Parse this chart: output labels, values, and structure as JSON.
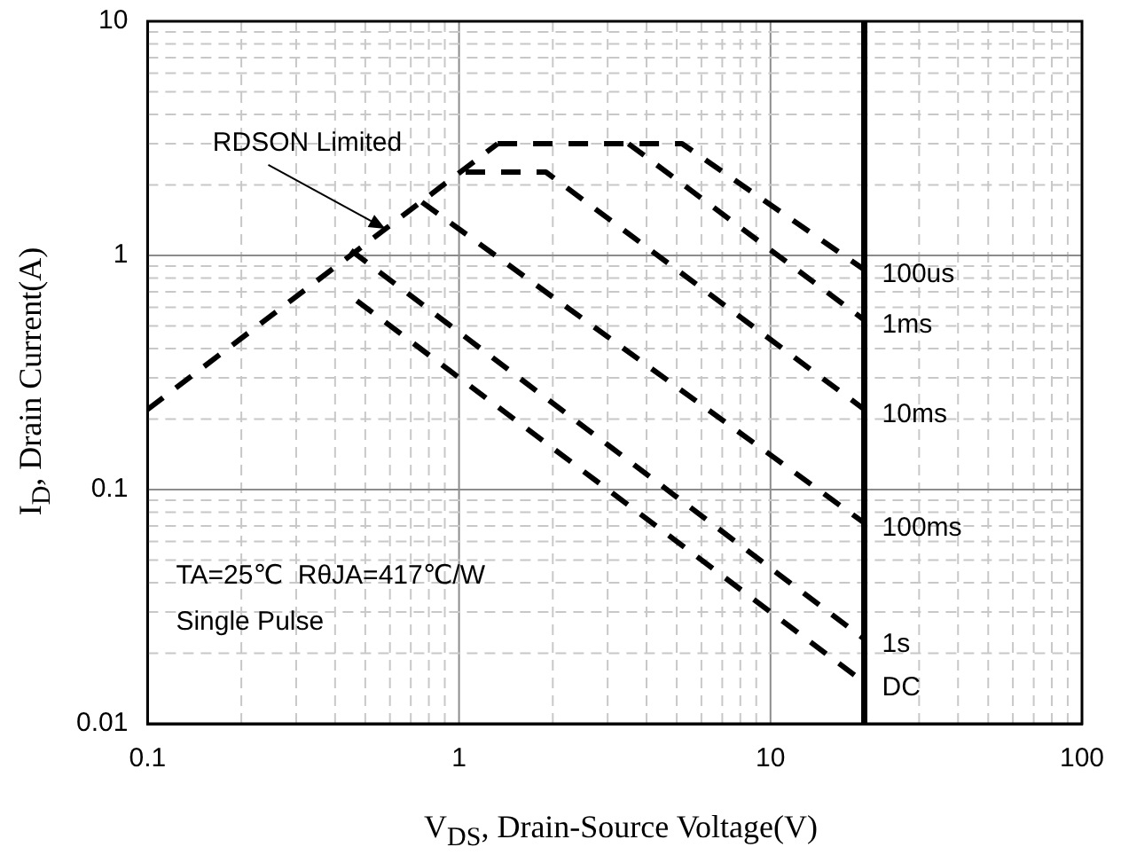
{
  "chart_data": {
    "type": "line",
    "xlabel": "V$_{DS}$, Drain-Source Voltage(V)",
    "ylabel": "I$_{D}$, Drain Current(A)",
    "log": "xy",
    "xlim": [
      0.1,
      100
    ],
    "ylim": [
      0.01,
      10
    ],
    "xticks": [
      0.1,
      {
        "value": 0.2,
        "label": null
      },
      {
        "value": 0.3,
        "label": null
      },
      {
        "value": 0.4,
        "label": null
      },
      {
        "value": 0.5,
        "label": null
      },
      {
        "value": 0.6,
        "label": null
      },
      {
        "value": 0.7,
        "label": null
      },
      {
        "value": 0.8,
        "label": null
      },
      {
        "value": 0.9,
        "label": null
      },
      1,
      {
        "value": 2,
        "label": null
      },
      {
        "value": 3,
        "label": null
      },
      {
        "value": 4,
        "label": null
      },
      {
        "value": 5,
        "label": null
      },
      {
        "value": 6,
        "label": null
      },
      {
        "value": 7,
        "label": null
      },
      {
        "value": 8,
        "label": null
      },
      {
        "value": 9,
        "label": null
      },
      10,
      {
        "value": 20,
        "label": null
      },
      {
        "value": 30,
        "label": null
      },
      {
        "value": 40,
        "label": null
      },
      {
        "value": 50,
        "label": null
      },
      {
        "value": 60,
        "label": null
      },
      {
        "value": 70,
        "label": null
      },
      {
        "value": 80,
        "label": null
      },
      {
        "value": 90,
        "label": null
      },
      100
    ],
    "yticks": [
      0.01,
      {
        "value": 0.02,
        "label": null
      },
      {
        "value": 0.03,
        "label": null
      },
      {
        "value": 0.04,
        "label": null
      },
      {
        "value": 0.05,
        "label": null
      },
      {
        "value": 0.06,
        "label": null
      },
      {
        "value": 0.07,
        "label": null
      },
      {
        "value": 0.08,
        "label": null
      },
      {
        "value": 0.09,
        "label": null
      },
      0.1,
      {
        "value": 0.2,
        "label": null
      },
      {
        "value": 0.3,
        "label": null
      },
      {
        "value": 0.4,
        "label": null
      },
      {
        "value": 0.5,
        "label": null
      },
      {
        "value": 0.6,
        "label": null
      },
      {
        "value": 0.7,
        "label": null
      },
      {
        "value": 0.8,
        "label": null
      },
      {
        "value": 0.9,
        "label": null
      },
      1,
      {
        "value": 2,
        "label": null
      },
      {
        "value": 3,
        "label": null
      },
      {
        "value": 4,
        "label": null
      },
      {
        "value": 5,
        "label": null
      },
      {
        "value": 6,
        "label": null
      },
      {
        "value": 7,
        "label": null
      },
      {
        "value": 8,
        "label": null
      },
      {
        "value": 9,
        "label": null
      },
      10
    ],
    "grid": true,
    "legend": false,
    "line_style": "dashed",
    "series": [
      {
        "color": "#000000",
        "x": [
          0.1,
          1.33
        ],
        "values": [
          0.22,
          3.0
        ]
      },
      {
        "name": "100us",
        "color": "#000000",
        "x": [
          1.33,
          5.2,
          20
        ],
        "values": [
          3.0,
          3.0,
          0.87
        ]
      },
      {
        "name": "1ms",
        "color": "#000000",
        "x": [
          3.5,
          20
        ],
        "values": [
          3.0,
          0.53
        ]
      },
      {
        "name": "10ms",
        "color": "#000000",
        "x": [
          1.05,
          1.9,
          20
        ],
        "values": [
          2.27,
          2.27,
          0.22
        ]
      },
      {
        "name": "100ms",
        "color": "#000000",
        "x": [
          0.76,
          20
        ],
        "values": [
          1.69,
          0.072
        ]
      },
      {
        "name": "1s",
        "color": "#000000",
        "x": [
          0.45,
          20
        ],
        "values": [
          1.05,
          0.023
        ]
      },
      {
        "name": "DC",
        "color": "#000000",
        "x": [
          0.47,
          20
        ],
        "values": [
          0.64,
          0.015
        ]
      }
    ],
    "ref_lines": [
      {
        "axis": "x",
        "value": 20,
        "color": "#000000",
        "line_style": "solid"
      }
    ],
    "annotations": [
      {
        "text": "RDSON Limited",
        "x": 0.58,
        "y": 1.3
      },
      "TA=25℃  RθJA=417℃/W",
      "Single Pulse"
    ]
  }
}
